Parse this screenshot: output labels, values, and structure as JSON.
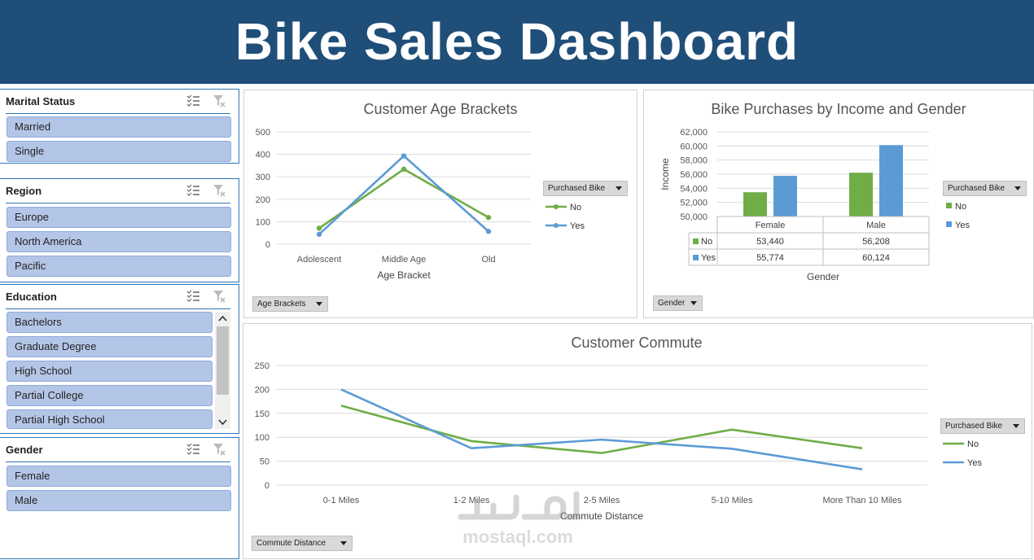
{
  "title": "Bike Sales Dashboard",
  "colors": {
    "header_bg": "#1f4e79",
    "no": "#70ad47",
    "yes": "#5b9bd5",
    "slicer_item": "#b4c6e7"
  },
  "slicers": {
    "marital": {
      "title": "Marital Status",
      "items": [
        "Married",
        "Single"
      ]
    },
    "region": {
      "title": "Region",
      "items": [
        "Europe",
        "North America",
        "Pacific"
      ]
    },
    "education": {
      "title": "Education",
      "items": [
        "Bachelors",
        "Graduate Degree",
        "High School",
        "Partial College",
        "Partial High School"
      ]
    },
    "gender": {
      "title": "Gender",
      "items": [
        "Female",
        "Male"
      ]
    }
  },
  "chart_data": [
    {
      "type": "line",
      "title": "Customer Age Brackets",
      "xlabel": "Age Bracket",
      "ylabel": "",
      "categories": [
        "Adolescent",
        "Middle Age",
        "Old"
      ],
      "ylim": [
        0,
        500
      ],
      "yticks": [
        0,
        100,
        200,
        300,
        400,
        500
      ],
      "legend_title": "Purchased Bike",
      "legend_position": "right",
      "field_button": "Age Brackets",
      "series": [
        {
          "name": "No",
          "values": [
            71,
            334,
            119
          ]
        },
        {
          "name": "Yes",
          "values": [
            44,
            393,
            57
          ]
        }
      ]
    },
    {
      "type": "bar",
      "title": "Bike Purchases by Income and Gender",
      "xlabel": "Gender",
      "ylabel": "Income",
      "categories": [
        "Female",
        "Male"
      ],
      "ylim": [
        50000,
        62000
      ],
      "yticks": [
        "50,000",
        "52,000",
        "54,000",
        "56,000",
        "58,000",
        "60,000",
        "62,000"
      ],
      "legend_title": "Purchased Bike",
      "legend_position": "right",
      "field_button": "Gender",
      "series": [
        {
          "name": "No",
          "values": [
            53440,
            56208
          ],
          "labels": [
            "53,440",
            "56,208"
          ]
        },
        {
          "name": "Yes",
          "values": [
            55774,
            60124
          ],
          "labels": [
            "55,774",
            "60,124"
          ]
        }
      ]
    },
    {
      "type": "line",
      "title": "Customer Commute",
      "xlabel": "Commute Distance",
      "ylabel": "",
      "categories": [
        "0-1 Miles",
        "1-2 Miles",
        "2-5 Miles",
        "5-10 Miles",
        "More Than 10 Miles"
      ],
      "ylim": [
        0,
        250
      ],
      "yticks": [
        0,
        50,
        100,
        150,
        200,
        250
      ],
      "legend_title": "Purchased Bike",
      "legend_position": "right",
      "field_button": "Commute Distance",
      "series": [
        {
          "name": "No",
          "values": [
            166,
            92,
            67,
            116,
            77
          ]
        },
        {
          "name": "Yes",
          "values": [
            200,
            77,
            95,
            76,
            33
          ]
        }
      ]
    }
  ],
  "watermark": "mostaql.com"
}
